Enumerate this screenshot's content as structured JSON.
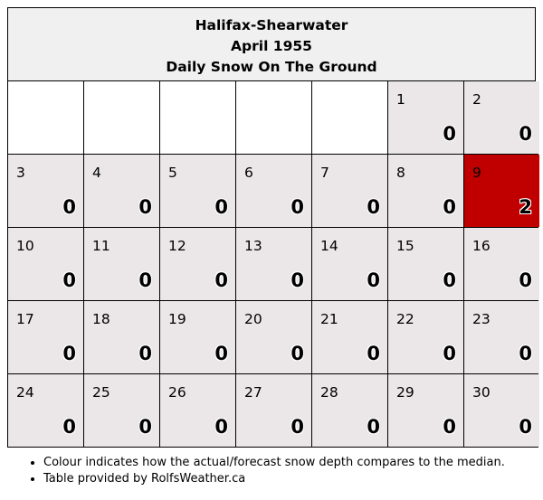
{
  "header": {
    "station": "Halifax-Shearwater",
    "period": "April 1955",
    "title": "Daily Snow On The Ground"
  },
  "colors": {
    "normal": "#ebe6e8",
    "above_median": "#c00000",
    "empty": "#ffffff"
  },
  "leading_empty_cells": 5,
  "days": [
    {
      "day": "1",
      "value": "0"
    },
    {
      "day": "2",
      "value": "0"
    },
    {
      "day": "3",
      "value": "0"
    },
    {
      "day": "4",
      "value": "0"
    },
    {
      "day": "5",
      "value": "0"
    },
    {
      "day": "6",
      "value": "0"
    },
    {
      "day": "7",
      "value": "0"
    },
    {
      "day": "8",
      "value": "0"
    },
    {
      "day": "9",
      "value": "2",
      "highlight": true
    },
    {
      "day": "10",
      "value": "0"
    },
    {
      "day": "11",
      "value": "0"
    },
    {
      "day": "12",
      "value": "0"
    },
    {
      "day": "13",
      "value": "0"
    },
    {
      "day": "14",
      "value": "0"
    },
    {
      "day": "15",
      "value": "0"
    },
    {
      "day": "16",
      "value": "0"
    },
    {
      "day": "17",
      "value": "0"
    },
    {
      "day": "18",
      "value": "0"
    },
    {
      "day": "19",
      "value": "0"
    },
    {
      "day": "20",
      "value": "0"
    },
    {
      "day": "21",
      "value": "0"
    },
    {
      "day": "22",
      "value": "0"
    },
    {
      "day": "23",
      "value": "0"
    },
    {
      "day": "24",
      "value": "0"
    },
    {
      "day": "25",
      "value": "0"
    },
    {
      "day": "26",
      "value": "0"
    },
    {
      "day": "27",
      "value": "0"
    },
    {
      "day": "28",
      "value": "0"
    },
    {
      "day": "29",
      "value": "0"
    },
    {
      "day": "30",
      "value": "0"
    }
  ],
  "notes": [
    "Colour indicates how the actual/forecast snow depth compares to the median.",
    "Table provided by RolfsWeather.ca"
  ]
}
